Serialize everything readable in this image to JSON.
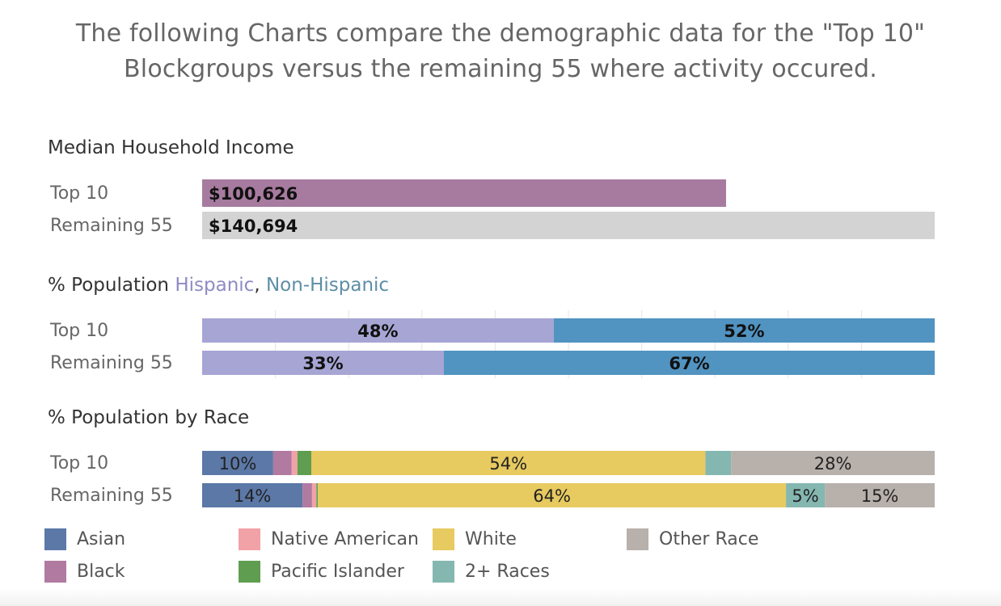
{
  "page": {
    "title_line1": "The following Charts compare the demographic data for the \"Top 10\"",
    "title_line2": "Blockgroups versus the remaining 55 where activity occured."
  },
  "sections": {
    "income_title": "Median Household Income",
    "hispanic_title_prefix": "% Population ",
    "hispanic_word": "Hispanic",
    "comma": ", ",
    "nonhispanic_word": "Non-Hispanic",
    "race_title": "% Population by Race"
  },
  "chart_data": [
    {
      "type": "bar",
      "title": "Median Household Income",
      "categories": [
        "Top 10",
        "Remaining 55"
      ],
      "values": [
        100626,
        140694
      ],
      "data_labels": [
        "$100,626",
        "$140,694"
      ],
      "colors": [
        "#a77b9f",
        "#d3d3d3"
      ]
    },
    {
      "type": "bar",
      "stacked": true,
      "title": "% Population Hispanic, Non-Hispanic",
      "categories": [
        "Top 10",
        "Remaining 55"
      ],
      "series": [
        {
          "name": "Hispanic",
          "values": [
            48,
            33
          ],
          "labels": [
            "48%",
            "33%"
          ],
          "color": "#a6a5d4"
        },
        {
          "name": "Non-Hispanic",
          "values": [
            52,
            67
          ],
          "labels": [
            "52%",
            "67%"
          ],
          "color": "#5193c1"
        }
      ],
      "grid": true
    },
    {
      "type": "bar",
      "stacked": true,
      "title": "% Population by Race",
      "categories": [
        "Top 10",
        "Remaining 55"
      ],
      "series": [
        {
          "name": "Asian",
          "values": [
            9.7,
            13.7
          ],
          "labels": [
            "10%",
            "14%"
          ],
          "color": "#5b78a7"
        },
        {
          "name": "Black",
          "values": [
            2.5,
            1.3
          ],
          "labels": [
            "",
            ""
          ],
          "color": "#b07aa1"
        },
        {
          "name": "Native American",
          "values": [
            0.8,
            0.6
          ],
          "labels": [
            "",
            ""
          ],
          "color": "#f1a2a7"
        },
        {
          "name": "Pacific Islander",
          "values": [
            1.9,
            0.2
          ],
          "labels": [
            "",
            ""
          ],
          "color": "#5f9e50"
        },
        {
          "name": "White",
          "values": [
            53.8,
            63.9
          ],
          "labels": [
            "54%",
            "64%"
          ],
          "color": "#e7ca60"
        },
        {
          "name": "2+ Races",
          "values": [
            3.5,
            5.3
          ],
          "labels": [
            "",
            "5%"
          ],
          "color": "#85b7b1"
        },
        {
          "name": "Other Race",
          "values": [
            27.8,
            15.0
          ],
          "labels": [
            "28%",
            "15%"
          ],
          "color": "#b8b0ab"
        }
      ]
    }
  ],
  "legend": [
    {
      "name": "Asian",
      "color": "#5b78a7"
    },
    {
      "name": "Native American",
      "color": "#f1a2a7"
    },
    {
      "name": "White",
      "color": "#e7ca60"
    },
    {
      "name": "Other Race",
      "color": "#b8b0ab"
    },
    {
      "name": "Black",
      "color": "#b07aa1"
    },
    {
      "name": "Pacific Islander",
      "color": "#5f9e50"
    },
    {
      "name": "2+ Races",
      "color": "#85b7b1"
    }
  ]
}
